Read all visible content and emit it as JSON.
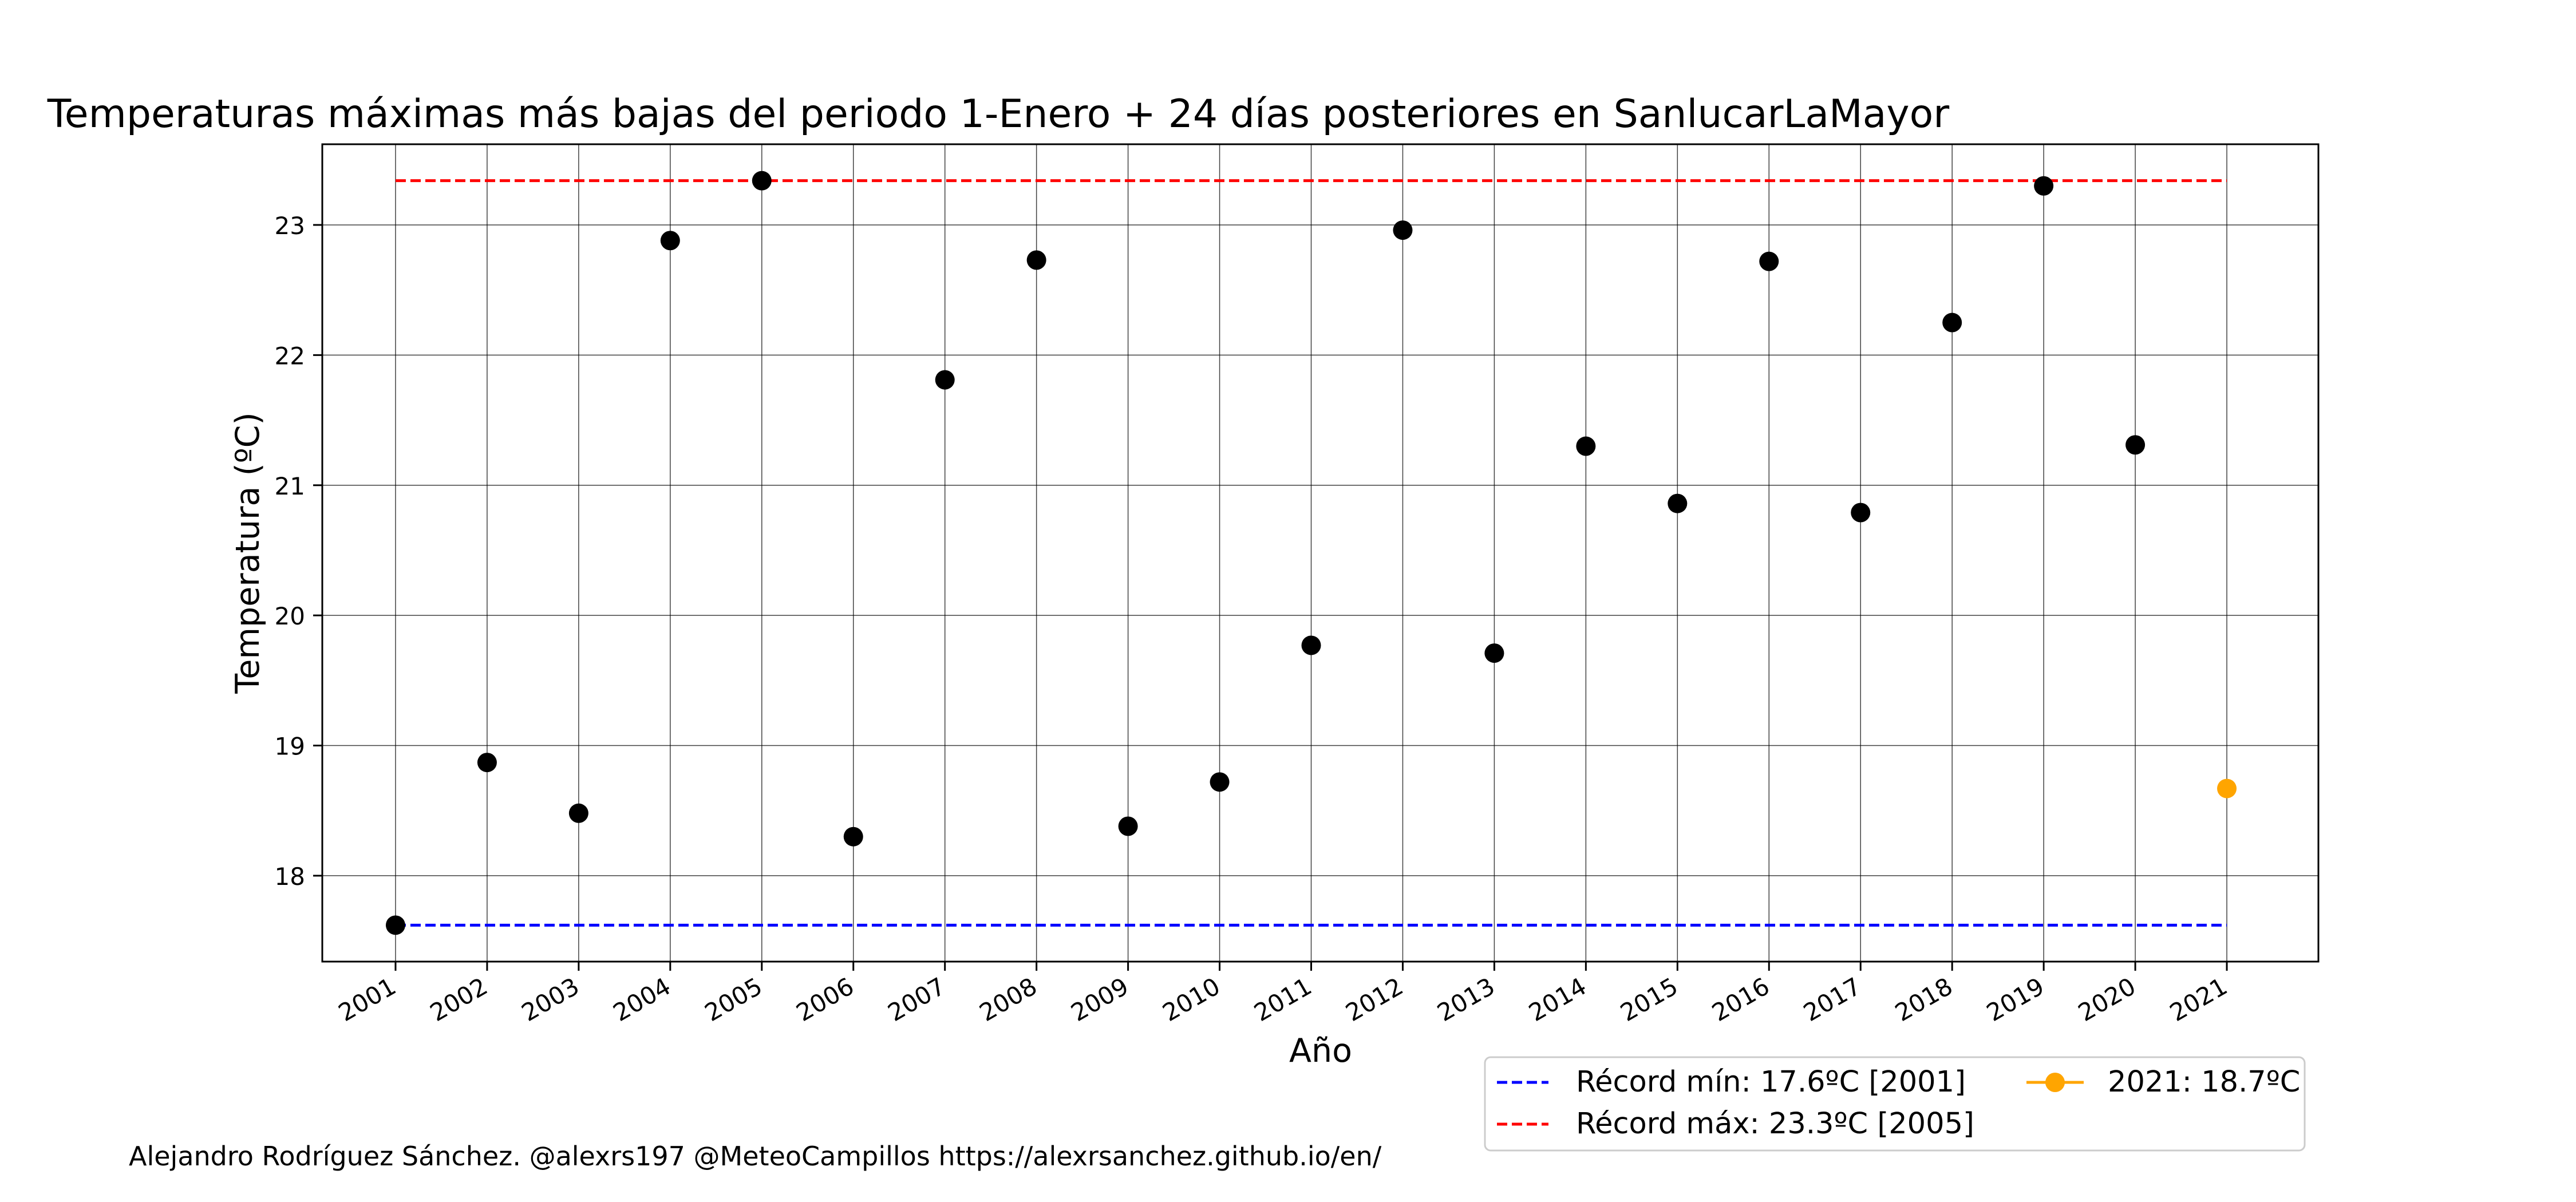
{
  "chart_data": {
    "type": "scatter",
    "title": "Temperaturas máximas más bajas del periodo 1-Enero + 24 días posteriores en SanlucarLaMayor",
    "xlabel": "Año",
    "ylabel": "Temperatura (ºC)",
    "x": [
      2001,
      2002,
      2003,
      2004,
      2005,
      2006,
      2007,
      2008,
      2009,
      2010,
      2011,
      2012,
      2013,
      2014,
      2015,
      2016,
      2017,
      2018,
      2019,
      2020,
      2021
    ],
    "x_tick_labels": [
      "2001",
      "2002",
      "2003",
      "2004",
      "2005",
      "2006",
      "2007",
      "2008",
      "2009",
      "2010",
      "2011",
      "2012",
      "2013",
      "2014",
      "2015",
      "2016",
      "2017",
      "2018",
      "2019",
      "2020",
      "2021"
    ],
    "y_ticks": [
      18,
      19,
      20,
      21,
      22,
      23
    ],
    "xlim": [
      2000.2,
      2022.0
    ],
    "ylim": [
      17.34,
      23.62
    ],
    "grid": true,
    "series": [
      {
        "color": "#000000",
        "x": [
          2001,
          2002,
          2003,
          2004,
          2005,
          2006,
          2007,
          2008,
          2009,
          2010,
          2011,
          2012,
          2013,
          2014,
          2015,
          2016,
          2017,
          2018,
          2019,
          2020
        ],
        "values": [
          17.62,
          18.87,
          18.48,
          22.88,
          23.34,
          18.3,
          21.81,
          22.73,
          18.38,
          18.72,
          19.77,
          22.96,
          19.71,
          21.3,
          20.86,
          22.72,
          20.79,
          22.25,
          23.3,
          21.31
        ]
      },
      {
        "name": "2021: 18.7ºC",
        "color": "#ffa500",
        "x": [
          2021
        ],
        "values": [
          18.67
        ]
      }
    ],
    "reference_lines": [
      {
        "name": "Récord mín: 17.6ºC [2001]",
        "value": 17.62,
        "color": "#0000ff",
        "style": "dashed",
        "x_range": [
          2001,
          2021
        ]
      },
      {
        "name": "Récord máx: 23.3ºC [2005]",
        "value": 23.34,
        "color": "#ff0000",
        "style": "dashed",
        "x_range": [
          2001,
          2021
        ]
      }
    ],
    "legend": {
      "placement": "below-right",
      "entries": [
        "Récord mín: 17.6ºC [2001]",
        "Récord máx: 23.3ºC [2005]",
        "2021: 18.7ºC"
      ]
    }
  },
  "footer": {
    "credit": "Alejandro Rodríguez Sánchez. @alexrs197 @MeteoCampillos   https://alexrsanchez.github.io/en/"
  }
}
